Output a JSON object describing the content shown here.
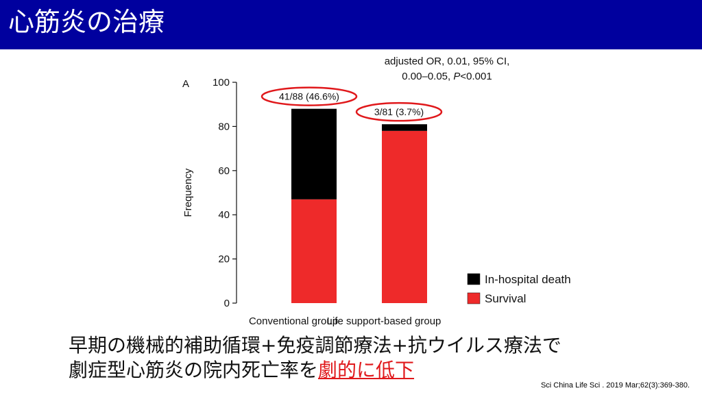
{
  "slide": {
    "title": "心筋炎の治療",
    "summary_line1": "早期の機械的補助循環+免疫調節療法+抗ウイルス療法で",
    "summary_line2_prefix": "劇症型心筋炎の院内死亡率を",
    "summary_line2_emphasis": "劇的に低下",
    "citation": "Sci China Life Sci . 2019 Mar;62(3):369-380."
  },
  "colors": {
    "title_bar": "#00009e",
    "death": "#000000",
    "survival": "#ee2a2a",
    "highlight": "#e0181b"
  },
  "chart_data": {
    "type": "bar",
    "stacked": true,
    "panel_label": "A",
    "categories": [
      "Conventional group",
      "Life support-based group"
    ],
    "series": [
      {
        "name": "Survival",
        "values": [
          47,
          78
        ]
      },
      {
        "name": "In-hospital death",
        "values": [
          41,
          3
        ]
      }
    ],
    "bar_labels": [
      "41/88 (46.6%)",
      "3/81 (3.7%)"
    ],
    "annotation_line1": "adjusted OR, 0.01, 95% CI,",
    "annotation_line2_prefix": "0.00–0.05, ",
    "annotation_line2_p": "P",
    "annotation_line2_suffix": "<0.001",
    "xlabel": "",
    "ylabel": "Frequency",
    "ylim": [
      0,
      100
    ],
    "yticks": [
      0,
      20,
      40,
      60,
      80,
      100
    ],
    "legend_position": "bottom-right",
    "grid": false
  }
}
